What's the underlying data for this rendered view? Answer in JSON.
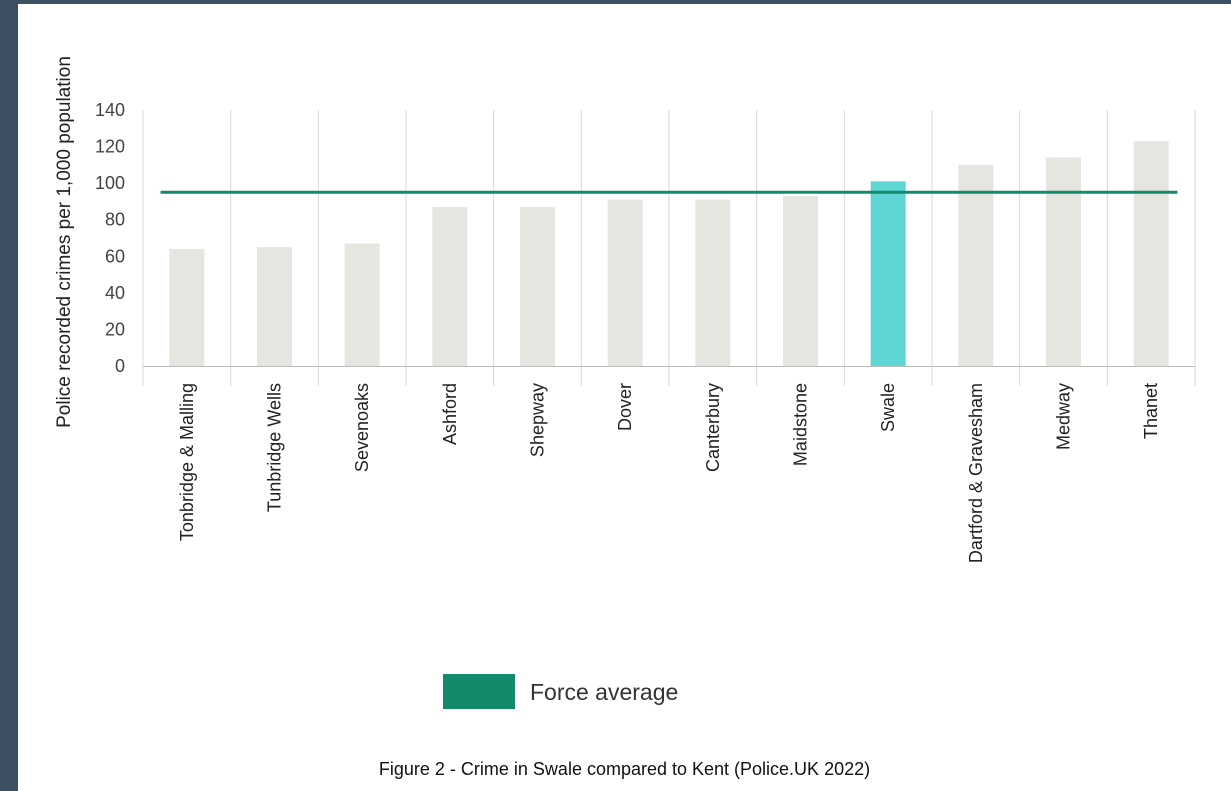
{
  "chart_data": {
    "type": "bar",
    "title": "",
    "ylabel": "Police recorded crimes per 1,000 population",
    "xlabel": "",
    "ylim": [
      0,
      140
    ],
    "yticks": [
      0,
      20,
      40,
      60,
      80,
      100,
      120,
      140
    ],
    "categories": [
      "Tonbridge & Malling",
      "Tunbridge Wells",
      "Sevenoaks",
      "Ashford",
      "Shepway",
      "Dover",
      "Canterbury",
      "Maidstone",
      "Swale",
      "Dartford & Gravesham",
      "Medway",
      "Thanet"
    ],
    "values": [
      64,
      65,
      67,
      87,
      87,
      91,
      91,
      93,
      101,
      110,
      114,
      123
    ],
    "highlight": "Swale",
    "reference_line": {
      "name": "Force average",
      "value": 95
    },
    "grid": {
      "vertical": true,
      "horizontal": false
    },
    "legend": "bottom-center",
    "colors": {
      "bar": "#e6e5df",
      "highlight": "#5fd6d3",
      "average": "#138a6b",
      "grid": "#d8d8d8",
      "axis": "#bdbdbd"
    }
  },
  "caption": "Figure 2 - Crime in Swale compared to Kent (Police.UK 2022)"
}
